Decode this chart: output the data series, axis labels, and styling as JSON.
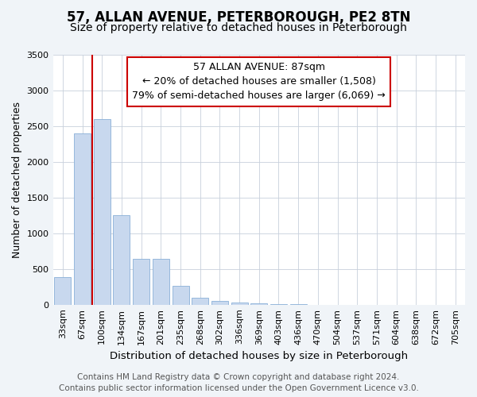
{
  "title": "57, ALLAN AVENUE, PETERBOROUGH, PE2 8TN",
  "subtitle": "Size of property relative to detached houses in Peterborough",
  "xlabel": "Distribution of detached houses by size in Peterborough",
  "ylabel": "Number of detached properties",
  "categories": [
    "33sqm",
    "67sqm",
    "100sqm",
    "134sqm",
    "167sqm",
    "201sqm",
    "235sqm",
    "268sqm",
    "302sqm",
    "336sqm",
    "369sqm",
    "403sqm",
    "436sqm",
    "470sqm",
    "504sqm",
    "537sqm",
    "571sqm",
    "604sqm",
    "638sqm",
    "672sqm",
    "705sqm"
  ],
  "values": [
    390,
    2400,
    2600,
    1250,
    640,
    640,
    260,
    100,
    50,
    28,
    15,
    8,
    5,
    3,
    2,
    1,
    1,
    1,
    1,
    0,
    0
  ],
  "bar_color": "#c8d8ee",
  "bar_edge_color": "#8ab0d8",
  "vline_x": 1.5,
  "vline_color": "#cc0000",
  "annotation_title": "57 ALLAN AVENUE: 87sqm",
  "annotation_line1": "← 20% of detached houses are smaller (1,508)",
  "annotation_line2": "79% of semi-detached houses are larger (6,069) →",
  "annotation_box_edgecolor": "#cc0000",
  "ylim": [
    0,
    3500
  ],
  "yticks": [
    0,
    500,
    1000,
    1500,
    2000,
    2500,
    3000,
    3500
  ],
  "bg_color": "#f0f4f8",
  "plot_bg_color": "#ffffff",
  "grid_color": "#c8d0dc",
  "title_fontsize": 12,
  "subtitle_fontsize": 10,
  "axis_label_fontsize": 9,
  "tick_label_fontsize": 8,
  "annotation_fontsize": 9,
  "footer_fontsize": 7.5,
  "footer1": "Contains HM Land Registry data © Crown copyright and database right 2024.",
  "footer2": "Contains public sector information licensed under the Open Government Licence v3.0."
}
